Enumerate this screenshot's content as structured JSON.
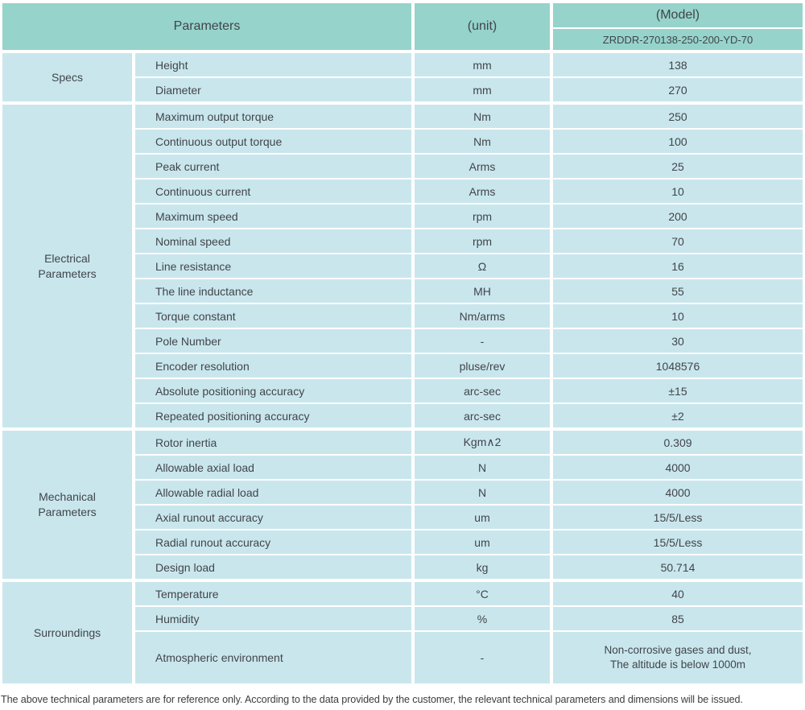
{
  "colors": {
    "header_bg": "#96d3cb",
    "row_bg": "#c9e6ed",
    "divider": "#ffffff",
    "text": "#414549"
  },
  "header": {
    "parameters_label": "Parameters",
    "unit_label": "(unit)",
    "model_label": "(Model)",
    "model_number": "ZRDDR-270138-250-200-YD-70"
  },
  "table": {
    "groups": [
      {
        "id": "specs",
        "label": "Specs",
        "rows": [
          {
            "param": "Height",
            "unit": "mm",
            "value": "138"
          },
          {
            "param": "Diameter",
            "unit": "mm",
            "value": "270"
          }
        ]
      },
      {
        "id": "electrical",
        "label": "Electrical Parameters",
        "rows": [
          {
            "param": "Maximum output torque",
            "unit": "Nm",
            "value": "250"
          },
          {
            "param": "Continuous output torque",
            "unit": "Nm",
            "value": "100"
          },
          {
            "param": "Peak current",
            "unit": "Arms",
            "value": "25"
          },
          {
            "param": "Continuous current",
            "unit": "Arms",
            "value": "10"
          },
          {
            "param": "Maximum speed",
            "unit": "rpm",
            "value": "200"
          },
          {
            "param": "Nominal speed",
            "unit": "rpm",
            "value": "70"
          },
          {
            "param": "Line resistance",
            "unit": "Ω",
            "value": "16"
          },
          {
            "param": "The line inductance",
            "unit": "MH",
            "value": "55"
          },
          {
            "param": "Torque constant",
            "unit": "Nm/arms",
            "value": "10"
          },
          {
            "param": "Pole Number",
            "unit": "-",
            "value": "30"
          },
          {
            "param": "Encoder resolution",
            "unit": "pluse/rev",
            "value": "1048576"
          },
          {
            "param": "Absolute positioning accuracy",
            "unit": "arc-sec",
            "value": "±15"
          },
          {
            "param": "Repeated positioning accuracy",
            "unit": "arc-sec",
            "value": "±2"
          }
        ]
      },
      {
        "id": "mechanical",
        "label": "Mechanical Parameters",
        "rows": [
          {
            "param": "Rotor inertia",
            "unit": "Kgm∧2",
            "value": "0.309"
          },
          {
            "param": "Allowable axial load",
            "unit": "N",
            "value": "4000"
          },
          {
            "param": "Allowable radial load",
            "unit": "N",
            "value": "4000"
          },
          {
            "param": "Axial runout accuracy",
            "unit": "um",
            "value": "15/5/Less"
          },
          {
            "param": "Radial runout accuracy",
            "unit": "um",
            "value": "15/5/Less"
          },
          {
            "param": "Design load",
            "unit": "kg",
            "value": "50.714"
          }
        ]
      },
      {
        "id": "surroundings",
        "label": "Surroundings",
        "rows": [
          {
            "param": "Temperature",
            "unit": "°C",
            "value": "40"
          },
          {
            "param": "Humidity",
            "unit": "%",
            "value": "85"
          },
          {
            "param": "Atmospheric environment",
            "unit": "-",
            "value_lines": [
              "Non-corrosive gases and dust,",
              "The altitude is below 1000m"
            ],
            "tall": true
          }
        ]
      }
    ]
  },
  "footer": {
    "note": "The above technical parameters are for reference only. According to the data provided by the customer, the relevant technical parameters and dimensions will be issued."
  }
}
